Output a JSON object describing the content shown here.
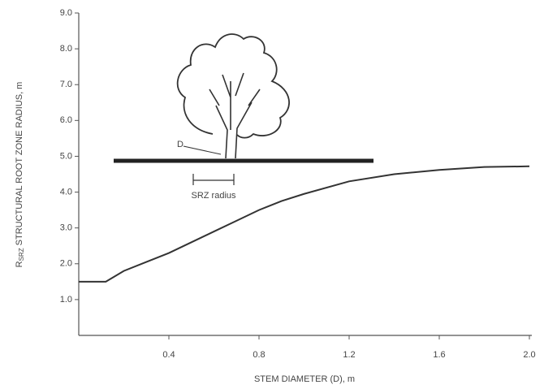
{
  "chart_data": {
    "type": "line",
    "y_label": {
      "main": "R",
      "sub": "SRZ",
      "rest": " STRUCTURAL ROOT ZONE RADIUS, m"
    },
    "x_label": "STEM DIAMETER (D), m",
    "annotations": {
      "diameter": "D",
      "radius": "SRZ radius"
    },
    "x": [
      0,
      0.12,
      0.2,
      0.3,
      0.4,
      0.5,
      0.6,
      0.7,
      0.8,
      0.9,
      1.0,
      1.2,
      1.4,
      1.6,
      1.8,
      2.0
    ],
    "values": [
      1.5,
      1.5,
      1.8,
      2.05,
      2.3,
      2.6,
      2.9,
      3.2,
      3.5,
      3.75,
      3.95,
      4.3,
      4.5,
      4.62,
      4.7,
      4.72
    ],
    "color": "#333333",
    "xlim": [
      0,
      2.0
    ],
    "xticks": [
      0.4,
      0.8,
      1.2,
      1.6,
      {
        "value": 2,
        "label": "2.0"
      }
    ],
    "ylim": [
      0,
      9.0
    ],
    "yticks": [
      {
        "value": 1,
        "label": "1.0"
      },
      {
        "value": 2,
        "label": "2.0"
      },
      {
        "value": 3,
        "label": "3.0"
      },
      {
        "value": 4,
        "label": "4.0"
      },
      {
        "value": 5,
        "label": "5.0"
      },
      {
        "value": 6,
        "label": "6.0"
      },
      {
        "value": 7,
        "label": "7.0"
      },
      {
        "value": 8,
        "label": "8.0"
      },
      {
        "value": 9,
        "label": "9.0"
      }
    ]
  }
}
